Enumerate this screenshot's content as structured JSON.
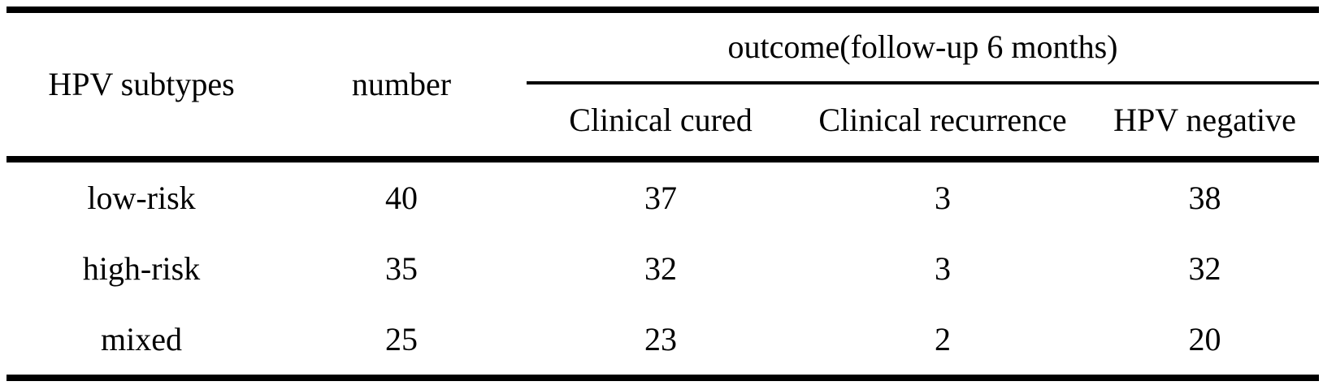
{
  "page": {
    "background_color": "#ffffff",
    "text_color": "#000000",
    "rule_color": "#000000"
  },
  "table": {
    "header": {
      "subtype_column": "HPV subtypes",
      "number_column": "number",
      "outcome_group": "outcome(follow-up 6 months)",
      "outcome_subcolumns": [
        "Clinical cured",
        "Clinical recurrence",
        "HPV negative"
      ]
    },
    "rows": [
      {
        "subtype": "low-risk",
        "number": "40",
        "clinical_cured": "37",
        "clinical_recurrence": "3",
        "hpv_negative": "38"
      },
      {
        "subtype": "high-risk",
        "number": "35",
        "clinical_cured": "32",
        "clinical_recurrence": "3",
        "hpv_negative": "32"
      },
      {
        "subtype": "mixed",
        "number": "25",
        "clinical_cured": "23",
        "clinical_recurrence": "2",
        "hpv_negative": "20"
      }
    ]
  },
  "chart_data": {
    "type": "table",
    "title": "",
    "columns": [
      "HPV subtypes",
      "number",
      "Clinical cured",
      "Clinical recurrence",
      "HPV negative"
    ],
    "column_group": {
      "label": "outcome(follow-up 6 months)",
      "spans": [
        "Clinical cured",
        "Clinical recurrence",
        "HPV negative"
      ]
    },
    "rows": [
      [
        "low-risk",
        40,
        37,
        3,
        38
      ],
      [
        "high-risk",
        35,
        32,
        3,
        32
      ],
      [
        "mixed",
        25,
        23,
        2,
        20
      ]
    ]
  }
}
